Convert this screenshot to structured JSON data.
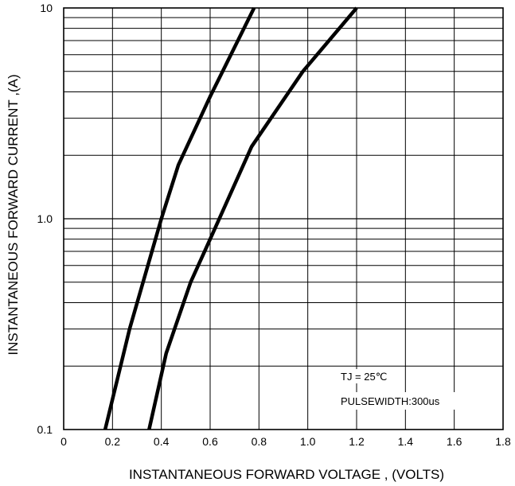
{
  "chart_data": {
    "type": "line",
    "title": "",
    "xlabel": "INSTANTANEOUS FORWARD VOLTAGE , (VOLTS)",
    "ylabel": "INSTANTANEOUS  FORWARD CURRENT ,(A)",
    "xlim": [
      0,
      1.8
    ],
    "ylim": [
      0.1,
      10
    ],
    "y_scale": "log",
    "grid": true,
    "x_ticks": [
      "0",
      "0.2",
      "0.4",
      "0.6",
      "0.8",
      "1.0",
      "1.2",
      "1.4",
      "1.6",
      "1.8"
    ],
    "y_ticks": [
      "0.1",
      "1.0",
      "10"
    ],
    "annotations": [
      "TJ = 25℃",
      "PULSEWIDTH:300us"
    ],
    "series": [
      {
        "x": [
          0.17,
          0.27,
          0.4,
          0.47,
          0.6,
          0.78
        ],
        "y": [
          0.1,
          0.3,
          1.0,
          1.8,
          3.8,
          10
        ]
      },
      {
        "x": [
          0.35,
          0.42,
          0.52,
          0.6,
          0.77,
          0.98,
          1.2
        ],
        "y": [
          0.1,
          0.23,
          0.5,
          0.8,
          2.2,
          5.0,
          10
        ]
      }
    ],
    "colors": {
      "line": "#000000",
      "grid": "#000000"
    }
  }
}
